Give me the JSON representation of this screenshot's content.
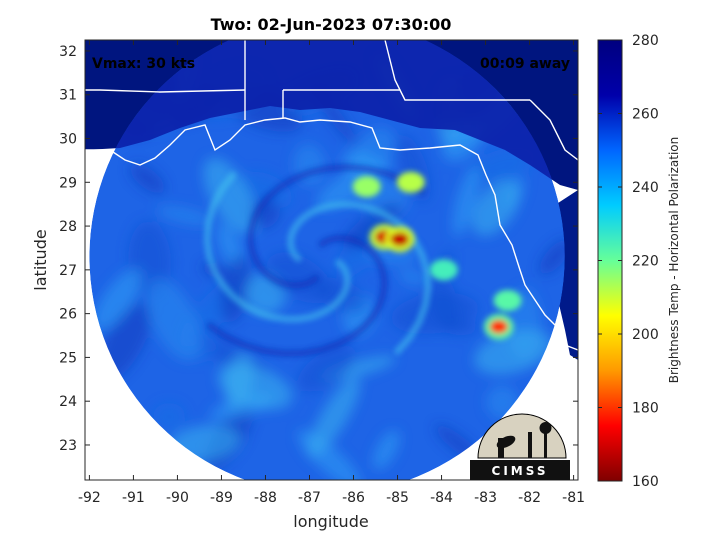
{
  "chart_data": {
    "type": "heatmap",
    "title": "Two: 02-Jun-2023 07:30:00",
    "xlabel": "longitude",
    "ylabel": "latitude",
    "xlim": [
      -92.1,
      -80.9
    ],
    "ylim": [
      22.2,
      32.25
    ],
    "xticks": [
      -92,
      -91,
      -90,
      -89,
      -88,
      -87,
      -86,
      -85,
      -84,
      -83,
      -82,
      -81
    ],
    "yticks": [
      23,
      24,
      25,
      26,
      27,
      28,
      29,
      30,
      31,
      32
    ],
    "annotations": {
      "vmax": "Vmax: 30 kts",
      "time_offset": "00:09 away"
    },
    "colorbar": {
      "label": "Brightness Temp - Horizontal Polarization",
      "range": [
        160,
        280
      ],
      "ticks": [
        160,
        180,
        200,
        220,
        240,
        260,
        280
      ],
      "colormap": [
        "#7f0000",
        "#ff0000",
        "#ff9900",
        "#ffff00",
        "#66ff99",
        "#00ccff",
        "#0066ff",
        "#0000aa",
        "#00007f"
      ]
    },
    "swath": {
      "center_lon": -86.6,
      "center_lat": 27.3,
      "radius_deg": 5.4
    },
    "features": [
      {
        "lon": -85.3,
        "lat": 27.75,
        "value": 170
      },
      {
        "lon": -84.95,
        "lat": 27.7,
        "value": 168
      },
      {
        "lon": -82.7,
        "lat": 25.7,
        "value": 180
      },
      {
        "lon": -85.7,
        "lat": 28.9,
        "value": 215
      },
      {
        "lon": -84.7,
        "lat": 29.0,
        "value": 212
      },
      {
        "lon": -83.95,
        "lat": 27.0,
        "value": 225
      },
      {
        "lon": -82.5,
        "lat": 26.3,
        "value": 222
      }
    ],
    "logo": "CIMSS"
  }
}
